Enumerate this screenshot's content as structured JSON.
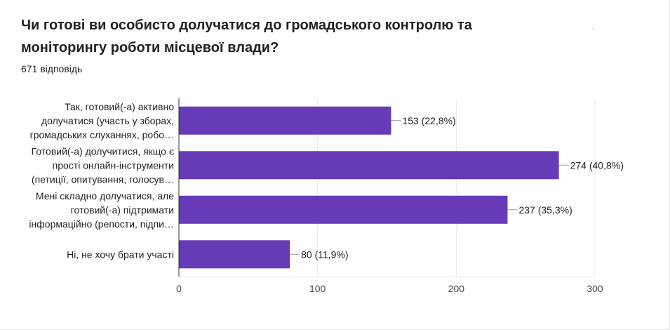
{
  "question": {
    "title": "Чи готові ви особисто долучатися до громадського контролю та моніторингу роботи місцевої влади?",
    "responses": "671 відповідь"
  },
  "chart_data": {
    "type": "bar",
    "orientation": "horizontal",
    "categories": [
      [
        "Так, готовий(-а) активно",
        "долучатися (участь у зборах,",
        "громадських слуханнях, робо…"
      ],
      [
        "Готовий(-а) долучитися, якщо є",
        "прості онлайн-інструменти",
        "(петиції, опитування, голосув…"
      ],
      [
        "Мені складно долучатися, але",
        "готовий(-а) підтримати",
        "інформаційно (репости, підпи…"
      ],
      [
        "Ні, не хочу брати участі"
      ]
    ],
    "values": [
      153,
      274,
      237,
      80
    ],
    "data_labels": [
      "153 (22,8%)",
      "274 (40,8%)",
      "237 (35,3%)",
      "80 (11,9%)"
    ],
    "x_ticks": [
      0,
      100,
      200,
      300
    ],
    "xlim": [
      0,
      300
    ],
    "grid": true,
    "bar_color": "#673ab7"
  }
}
